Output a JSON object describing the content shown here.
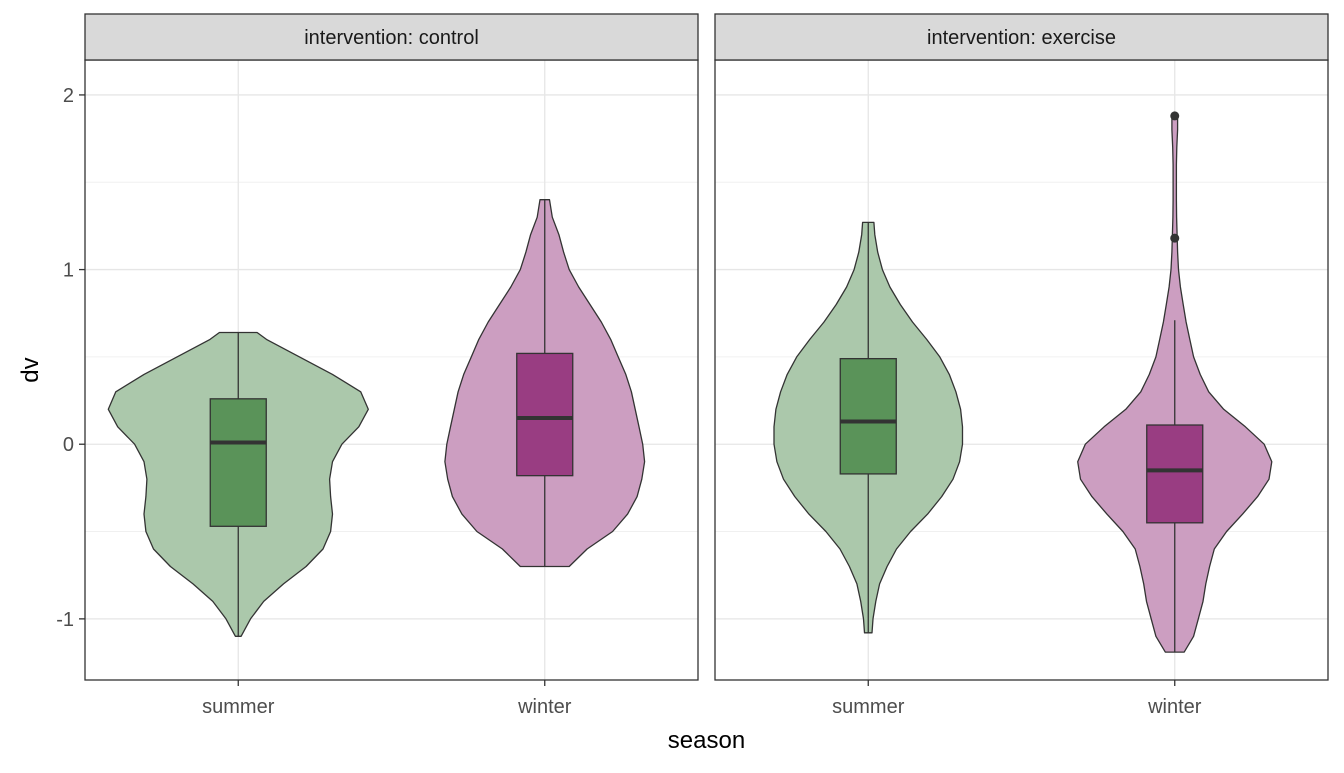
{
  "chart_data": {
    "type": "violin",
    "xlabel": "season",
    "ylabel": "dv",
    "y_ticks": [
      -1,
      0,
      1,
      2
    ],
    "ylim": [
      -1.35,
      2.2
    ],
    "grid": true,
    "categories": [
      "summer",
      "winter"
    ],
    "colors": {
      "summer": "#5a9359",
      "winter": "#993d82"
    },
    "facets": [
      {
        "strip": "intervention: control",
        "groups": [
          {
            "category": "summer",
            "min": -1.1,
            "max": 0.64,
            "box": {
              "q1": -0.47,
              "median": 0.01,
              "q3": 0.26,
              "whisker_low": -1.1,
              "whisker_high": 0.64
            },
            "outliers": [],
            "density": [
              [
                -1.1,
                0.03
              ],
              [
                -1.0,
                0.13
              ],
              [
                -0.9,
                0.27
              ],
              [
                -0.8,
                0.48
              ],
              [
                -0.7,
                0.72
              ],
              [
                -0.6,
                0.9
              ],
              [
                -0.5,
                0.98
              ],
              [
                -0.4,
                1.0
              ],
              [
                -0.3,
                0.98
              ],
              [
                -0.2,
                0.97
              ],
              [
                -0.1,
                1.0
              ],
              [
                0.0,
                1.1
              ],
              [
                0.1,
                1.28
              ],
              [
                0.2,
                1.38
              ],
              [
                0.3,
                1.3
              ],
              [
                0.4,
                1.0
              ],
              [
                0.5,
                0.65
              ],
              [
                0.6,
                0.3
              ],
              [
                0.64,
                0.2
              ]
            ]
          },
          {
            "category": "winter",
            "min": -0.7,
            "max": 1.4,
            "box": {
              "q1": -0.18,
              "median": 0.15,
              "q3": 0.52,
              "whisker_low": -0.7,
              "whisker_high": 1.4
            },
            "outliers": [],
            "density": [
              [
                -0.7,
                0.26
              ],
              [
                -0.6,
                0.45
              ],
              [
                -0.5,
                0.72
              ],
              [
                -0.4,
                0.88
              ],
              [
                -0.3,
                0.98
              ],
              [
                -0.2,
                1.03
              ],
              [
                -0.1,
                1.06
              ],
              [
                0.0,
                1.04
              ],
              [
                0.1,
                1.0
              ],
              [
                0.2,
                0.96
              ],
              [
                0.3,
                0.92
              ],
              [
                0.4,
                0.86
              ],
              [
                0.5,
                0.78
              ],
              [
                0.6,
                0.7
              ],
              [
                0.7,
                0.6
              ],
              [
                0.8,
                0.48
              ],
              [
                0.9,
                0.36
              ],
              [
                1.0,
                0.26
              ],
              [
                1.1,
                0.2
              ],
              [
                1.2,
                0.15
              ],
              [
                1.3,
                0.08
              ],
              [
                1.4,
                0.05
              ]
            ]
          }
        ]
      },
      {
        "strip": "intervention: exercise",
        "groups": [
          {
            "category": "summer",
            "min": -1.08,
            "max": 1.27,
            "box": {
              "q1": -0.17,
              "median": 0.13,
              "q3": 0.49,
              "whisker_low": -1.08,
              "whisker_high": 1.27
            },
            "outliers": [],
            "density": [
              [
                -1.08,
                0.04
              ],
              [
                -1.0,
                0.05
              ],
              [
                -0.9,
                0.08
              ],
              [
                -0.8,
                0.12
              ],
              [
                -0.7,
                0.2
              ],
              [
                -0.6,
                0.3
              ],
              [
                -0.5,
                0.45
              ],
              [
                -0.4,
                0.63
              ],
              [
                -0.3,
                0.78
              ],
              [
                -0.2,
                0.9
              ],
              [
                -0.1,
                0.97
              ],
              [
                0.0,
                1.0
              ],
              [
                0.1,
                1.0
              ],
              [
                0.2,
                0.98
              ],
              [
                0.3,
                0.93
              ],
              [
                0.4,
                0.86
              ],
              [
                0.5,
                0.76
              ],
              [
                0.6,
                0.62
              ],
              [
                0.7,
                0.47
              ],
              [
                0.8,
                0.34
              ],
              [
                0.9,
                0.23
              ],
              [
                1.0,
                0.15
              ],
              [
                1.1,
                0.1
              ],
              [
                1.2,
                0.07
              ],
              [
                1.27,
                0.06
              ]
            ]
          },
          {
            "category": "winter",
            "min": -1.19,
            "max": 1.88,
            "box": {
              "q1": -0.45,
              "median": -0.15,
              "q3": 0.11,
              "whisker_low": -1.19,
              "whisker_high": 0.71
            },
            "outliers": [
              1.18,
              1.88
            ],
            "density": [
              [
                -1.19,
                0.1
              ],
              [
                -1.1,
                0.2
              ],
              [
                -1.0,
                0.25
              ],
              [
                -0.9,
                0.3
              ],
              [
                -0.8,
                0.33
              ],
              [
                -0.7,
                0.37
              ],
              [
                -0.6,
                0.42
              ],
              [
                -0.5,
                0.55
              ],
              [
                -0.4,
                0.72
              ],
              [
                -0.3,
                0.88
              ],
              [
                -0.2,
                1.0
              ],
              [
                -0.1,
                1.03
              ],
              [
                0.0,
                0.95
              ],
              [
                0.1,
                0.75
              ],
              [
                0.2,
                0.52
              ],
              [
                0.3,
                0.36
              ],
              [
                0.4,
                0.27
              ],
              [
                0.5,
                0.2
              ],
              [
                0.6,
                0.16
              ],
              [
                0.7,
                0.12
              ],
              [
                0.8,
                0.09
              ],
              [
                0.9,
                0.06
              ],
              [
                1.0,
                0.04
              ],
              [
                1.1,
                0.03
              ],
              [
                1.2,
                0.025
              ],
              [
                1.3,
                0.02
              ],
              [
                1.4,
                0.018
              ],
              [
                1.5,
                0.017
              ],
              [
                1.6,
                0.018
              ],
              [
                1.7,
                0.022
              ],
              [
                1.8,
                0.03
              ],
              [
                1.88,
                0.03
              ]
            ]
          }
        ]
      }
    ]
  }
}
